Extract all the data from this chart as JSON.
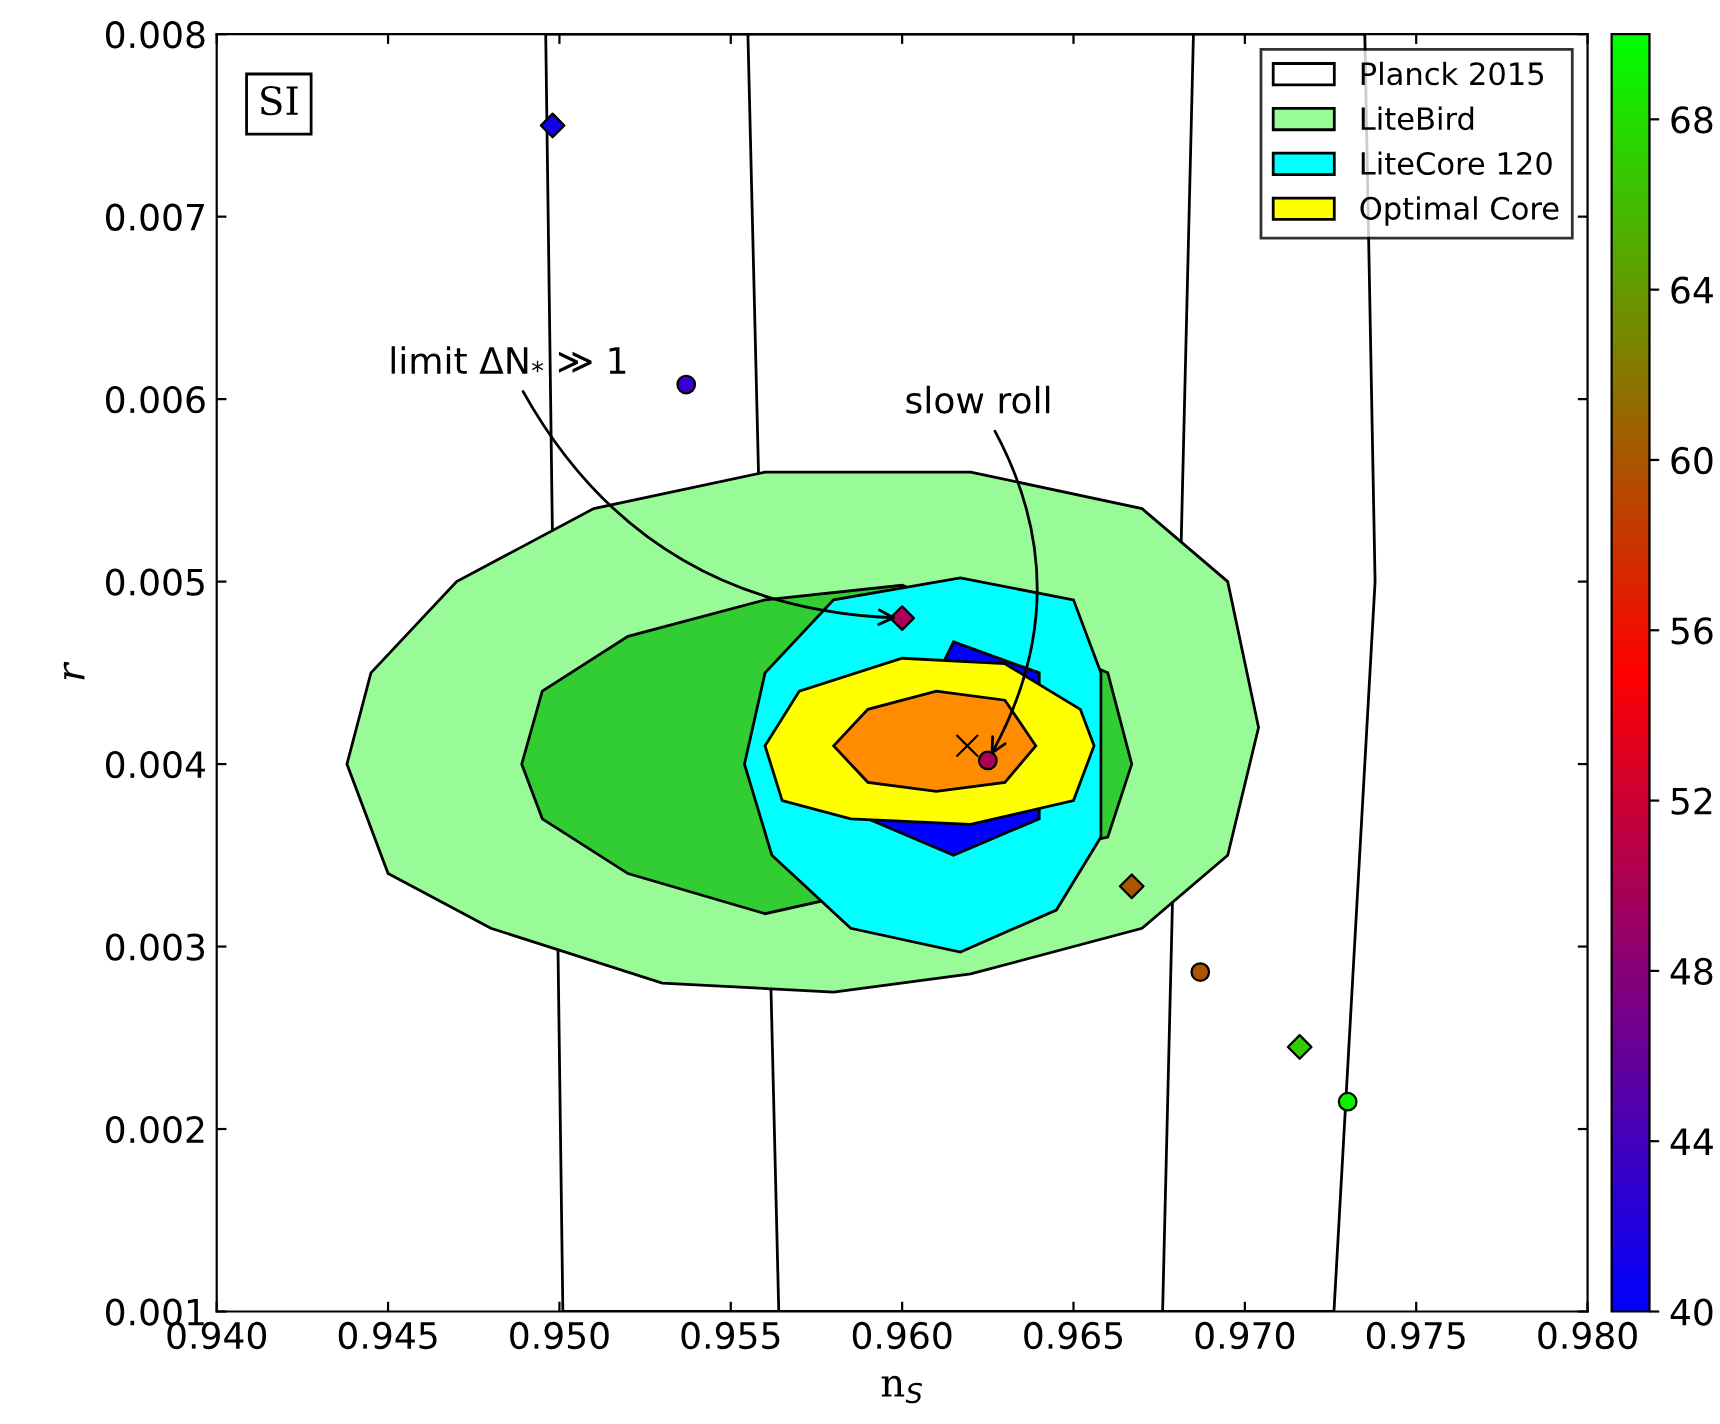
{
  "chart_data": {
    "type": "scatter",
    "xlabel": "n$_{S}$",
    "ylabel": "r",
    "xlim": [
      0.94,
      0.98
    ],
    "xticks": [
      {
        "value": 0.94,
        "label": "0.940"
      },
      0.945,
      {
        "value": 0.95,
        "label": "0.950"
      },
      0.955,
      {
        "value": 0.96,
        "label": "0.960"
      },
      0.965,
      {
        "value": 0.97,
        "label": "0.970"
      },
      0.975,
      {
        "value": 0.98,
        "label": "0.980"
      }
    ],
    "ylim": [
      0.001,
      0.008
    ],
    "yticks": [
      0.001,
      0.002,
      0.003,
      0.004,
      0.005,
      0.006,
      0.007,
      0.008
    ],
    "clim": [
      40,
      70
    ],
    "cticks": [
      40,
      44,
      48,
      52,
      56,
      60,
      64,
      68
    ],
    "legend": "top right",
    "grid": false,
    "series": [
      {
        "type": "area",
        "name": "Planck 2015",
        "color": "#ffffff",
        "x": [
          0.9496,
          0.9501,
          0.9726,
          0.9738,
          0.9735
        ],
        "values": [
          0.008,
          0.001,
          0.001,
          0.005,
          0.008
        ]
      },
      {
        "type": "area",
        "color": "#ffffff",
        "x": [
          0.9555,
          0.9564,
          0.9676,
          0.9685
        ],
        "values": [
          0.008,
          0.001,
          0.001,
          0.008
        ]
      },
      {
        "type": "area",
        "name": "LiteBird",
        "color": "#98fb98",
        "x": [
          0.9438,
          0.9445,
          0.947,
          0.951,
          0.956,
          0.962,
          0.967,
          0.9695,
          0.9704,
          0.9695,
          0.967,
          0.962,
          0.958,
          0.953,
          0.948,
          0.945
        ],
        "values": [
          0.004,
          0.0045,
          0.005,
          0.0054,
          0.0056,
          0.0056,
          0.0054,
          0.005,
          0.0042,
          0.0035,
          0.0031,
          0.00285,
          0.00275,
          0.0028,
          0.0031,
          0.0034
        ]
      },
      {
        "type": "area",
        "color": "#32cd32",
        "x": [
          0.9489,
          0.9495,
          0.952,
          0.956,
          0.96,
          0.966,
          0.9667,
          0.966,
          0.956,
          0.952,
          0.9495
        ],
        "values": [
          0.004,
          0.0044,
          0.0047,
          0.0049,
          0.00498,
          0.0045,
          0.004,
          0.0036,
          0.00318,
          0.0034,
          0.0037
        ]
      },
      {
        "type": "area",
        "name": "LiteCore 120",
        "color": "#00ffff",
        "x": [
          0.9554,
          0.956,
          0.958,
          0.9617,
          0.965,
          0.9658,
          0.9658,
          0.9645,
          0.9617,
          0.9585,
          0.9562
        ],
        "values": [
          0.004,
          0.0045,
          0.0049,
          0.00502,
          0.0049,
          0.0045,
          0.0036,
          0.0032,
          0.00297,
          0.0031,
          0.0035
        ]
      },
      {
        "type": "area",
        "color": "#0000ff",
        "x": [
          0.9615,
          0.964,
          0.964,
          0.9615,
          0.959
        ],
        "values": [
          0.00467,
          0.0045,
          0.0037,
          0.0035,
          0.0037
        ]
      },
      {
        "type": "area",
        "name": "Optimal Core",
        "color": "#ffff00",
        "x": [
          0.956,
          0.957,
          0.96,
          0.963,
          0.9652,
          0.9656,
          0.965,
          0.962,
          0.9585,
          0.9565
        ],
        "values": [
          0.0041,
          0.0044,
          0.00458,
          0.00455,
          0.0043,
          0.0041,
          0.0038,
          0.00367,
          0.0037,
          0.0038
        ]
      },
      {
        "type": "area",
        "color": "#ff8c00",
        "x": [
          0.958,
          0.959,
          0.961,
          0.963,
          0.9639,
          0.963,
          0.961,
          0.959
        ],
        "values": [
          0.0041,
          0.0043,
          0.0044,
          0.00435,
          0.0041,
          0.0039,
          0.00385,
          0.0039
        ]
      },
      {
        "marker": "cross",
        "color": "#000000",
        "x": [
          0.9619
        ],
        "values": [
          0.0041
        ]
      },
      {
        "type": "scatter",
        "marker": "diamond",
        "x": [
          0.9498,
          0.96,
          0.9667,
          0.9716
        ],
        "values": [
          0.0075,
          0.0048,
          0.00333,
          0.00245
        ],
        "colors": [
          "#1100ee",
          "#aa0055",
          "#aa5500",
          "#33cc00"
        ]
      },
      {
        "type": "scatter",
        "marker": "circle",
        "x": [
          0.9537,
          0.9625,
          0.9687,
          0.973
        ],
        "values": [
          0.00608,
          0.00402,
          0.00286,
          0.00215
        ],
        "colors": [
          "#3300cc",
          "#aa0055",
          "#aa5500",
          "#11ee00"
        ]
      }
    ],
    "annotations": [
      "SI",
      {
        "text": "limit ΔN$_{*}$ ≫ 1",
        "x": 0.96,
        "y": 0.0048
      },
      {
        "text": "slow roll",
        "x": 0.9625,
        "y": 0.00402
      }
    ]
  }
}
